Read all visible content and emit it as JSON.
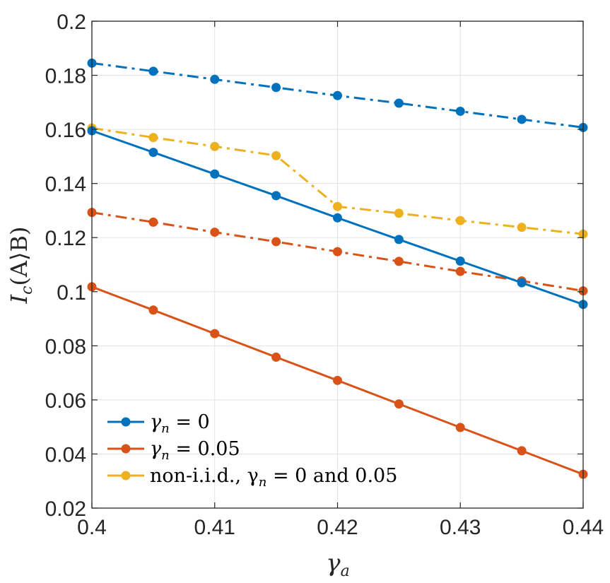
{
  "chart_data": {
    "type": "line",
    "xlabel": "γa",
    "ylabel": "Ic(A⟩B)",
    "xlim": [
      0.4,
      0.44
    ],
    "ylim": [
      0.02,
      0.2
    ],
    "xticks": [
      0.4,
      0.41,
      0.42,
      0.43,
      0.44
    ],
    "xtick_labels": [
      "0.4",
      "0.41",
      "0.42",
      "0.43",
      "0.44"
    ],
    "yticks": [
      0.02,
      0.04,
      0.06,
      0.08,
      0.1,
      0.12,
      0.14,
      0.16,
      0.18,
      0.2
    ],
    "ytick_labels": [
      "0.02",
      "0.04",
      "0.06",
      "0.08",
      "0.1",
      "0.12",
      "0.14",
      "0.16",
      "0.18",
      "0.2"
    ],
    "grid": true,
    "legend_position": "bottom-left",
    "x": [
      0.4,
      0.405,
      0.41,
      0.415,
      0.42,
      0.425,
      0.43,
      0.435,
      0.44
    ],
    "series": [
      {
        "name": "γn = 0",
        "color": "#0072BD",
        "style": "solid",
        "in_legend": true,
        "values": [
          0.1595,
          0.1515,
          0.1435,
          0.1355,
          0.1273,
          0.1193,
          0.1113,
          0.1033,
          0.0953
        ]
      },
      {
        "name": "γn = 0.05",
        "color": "#D95319",
        "style": "solid",
        "in_legend": true,
        "values": [
          0.1018,
          0.0932,
          0.0845,
          0.0758,
          0.0672,
          0.0585,
          0.0498,
          0.0412,
          0.0325
        ]
      },
      {
        "name": "non-i.i.d., γn = 0 and 0.05",
        "color": "#EDB120",
        "style": "dashdot",
        "in_legend": true,
        "values": [
          0.1605,
          0.157,
          0.1537,
          0.1503,
          0.1315,
          0.129,
          0.1263,
          0.1238,
          0.1213
        ]
      },
      {
        "name": "",
        "color": "#0072BD",
        "style": "dashdot",
        "in_legend": false,
        "values": [
          0.1845,
          0.1815,
          0.1785,
          0.1755,
          0.1725,
          0.1697,
          0.1667,
          0.1637,
          0.1607
        ]
      },
      {
        "name": "",
        "color": "#D95319",
        "style": "dashdot",
        "in_legend": false,
        "values": [
          0.1293,
          0.1257,
          0.122,
          0.1185,
          0.1148,
          0.1112,
          0.1075,
          0.104,
          0.1003
        ]
      }
    ]
  }
}
